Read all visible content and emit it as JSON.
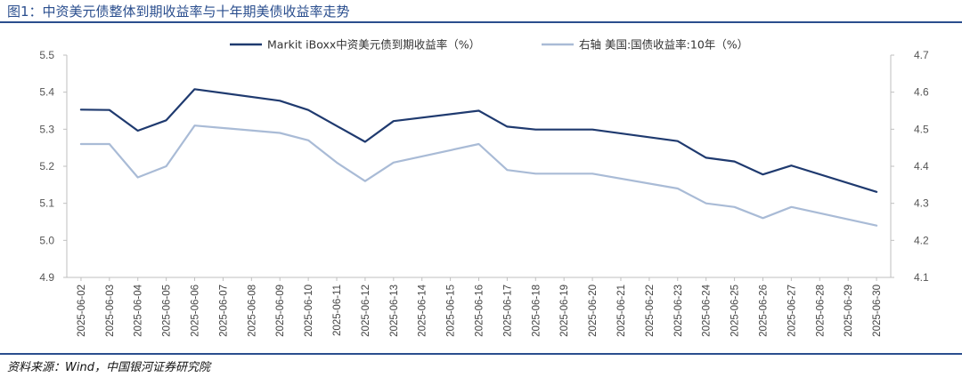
{
  "header": {
    "title": "图1：中资美元债整体到期收益率与十年期美债收益率走势"
  },
  "footer": {
    "source": "资料来源：Wind，中国银河证券研究院"
  },
  "chart_data": {
    "type": "line",
    "title": "",
    "xlabel": "",
    "ylabel": "",
    "legend_position": "top",
    "grid": false,
    "x": [
      "2025-06-02",
      "2025-06-03",
      "2025-06-04",
      "2025-06-05",
      "2025-06-06",
      "2025-06-07",
      "2025-06-08",
      "2025-06-09",
      "2025-06-10",
      "2025-06-11",
      "2025-06-12",
      "2025-06-13",
      "2025-06-14",
      "2025-06-15",
      "2025-06-16",
      "2025-06-17",
      "2025-06-18",
      "2025-06-19",
      "2025-06-20",
      "2025-06-21",
      "2025-06-22",
      "2025-06-23",
      "2025-06-24",
      "2025-06-25",
      "2025-06-26",
      "2025-06-27",
      "2025-06-28",
      "2025-06-29",
      "2025-06-30"
    ],
    "left_axis": {
      "ylim": [
        4.9,
        5.5
      ],
      "ticks": [
        "4.9",
        "5.0",
        "5.1",
        "5.2",
        "5.3",
        "5.4",
        "5.5"
      ]
    },
    "right_axis": {
      "ylim": [
        4.1,
        4.7
      ],
      "ticks": [
        "4.1",
        "4.2",
        "4.3",
        "4.4",
        "4.5",
        "4.6",
        "4.7"
      ]
    },
    "series": [
      {
        "name": "Markit iBoxx中资美元债到期收益率（%）",
        "axis": "left",
        "color": "#1f3a6f",
        "points": [
          [
            "2025-06-02",
            5.353
          ],
          [
            "2025-06-03",
            5.352
          ],
          [
            "2025-06-04",
            5.296
          ],
          [
            "2025-06-05",
            5.324
          ],
          [
            "2025-06-06",
            5.408
          ],
          [
            "2025-06-09",
            5.377
          ],
          [
            "2025-06-10",
            5.352
          ],
          [
            "2025-06-12",
            5.266
          ],
          [
            "2025-06-13",
            5.322
          ],
          [
            "2025-06-16",
            5.35
          ],
          [
            "2025-06-17",
            5.307
          ],
          [
            "2025-06-18",
            5.299
          ],
          [
            "2025-06-20",
            5.299
          ],
          [
            "2025-06-23",
            5.268
          ],
          [
            "2025-06-24",
            5.223
          ],
          [
            "2025-06-25",
            5.213
          ],
          [
            "2025-06-26",
            5.178
          ],
          [
            "2025-06-27",
            5.202
          ],
          [
            "2025-06-30",
            5.131
          ]
        ]
      },
      {
        "name": "右轴 美国:国债收益率:10年（%）",
        "axis": "right",
        "color": "#a9bbd6",
        "points": [
          [
            "2025-06-02",
            4.46
          ],
          [
            "2025-06-03",
            4.46
          ],
          [
            "2025-06-04",
            4.37
          ],
          [
            "2025-06-05",
            4.4
          ],
          [
            "2025-06-06",
            4.51
          ],
          [
            "2025-06-09",
            4.49
          ],
          [
            "2025-06-10",
            4.47
          ],
          [
            "2025-06-11",
            4.41
          ],
          [
            "2025-06-12",
            4.36
          ],
          [
            "2025-06-13",
            4.41
          ],
          [
            "2025-06-16",
            4.46
          ],
          [
            "2025-06-17",
            4.39
          ],
          [
            "2025-06-18",
            4.38
          ],
          [
            "2025-06-20",
            4.38
          ],
          [
            "2025-06-23",
            4.34
          ],
          [
            "2025-06-24",
            4.3
          ],
          [
            "2025-06-25",
            4.29
          ],
          [
            "2025-06-26",
            4.26
          ],
          [
            "2025-06-27",
            4.29
          ],
          [
            "2025-06-30",
            4.24
          ]
        ]
      }
    ]
  }
}
